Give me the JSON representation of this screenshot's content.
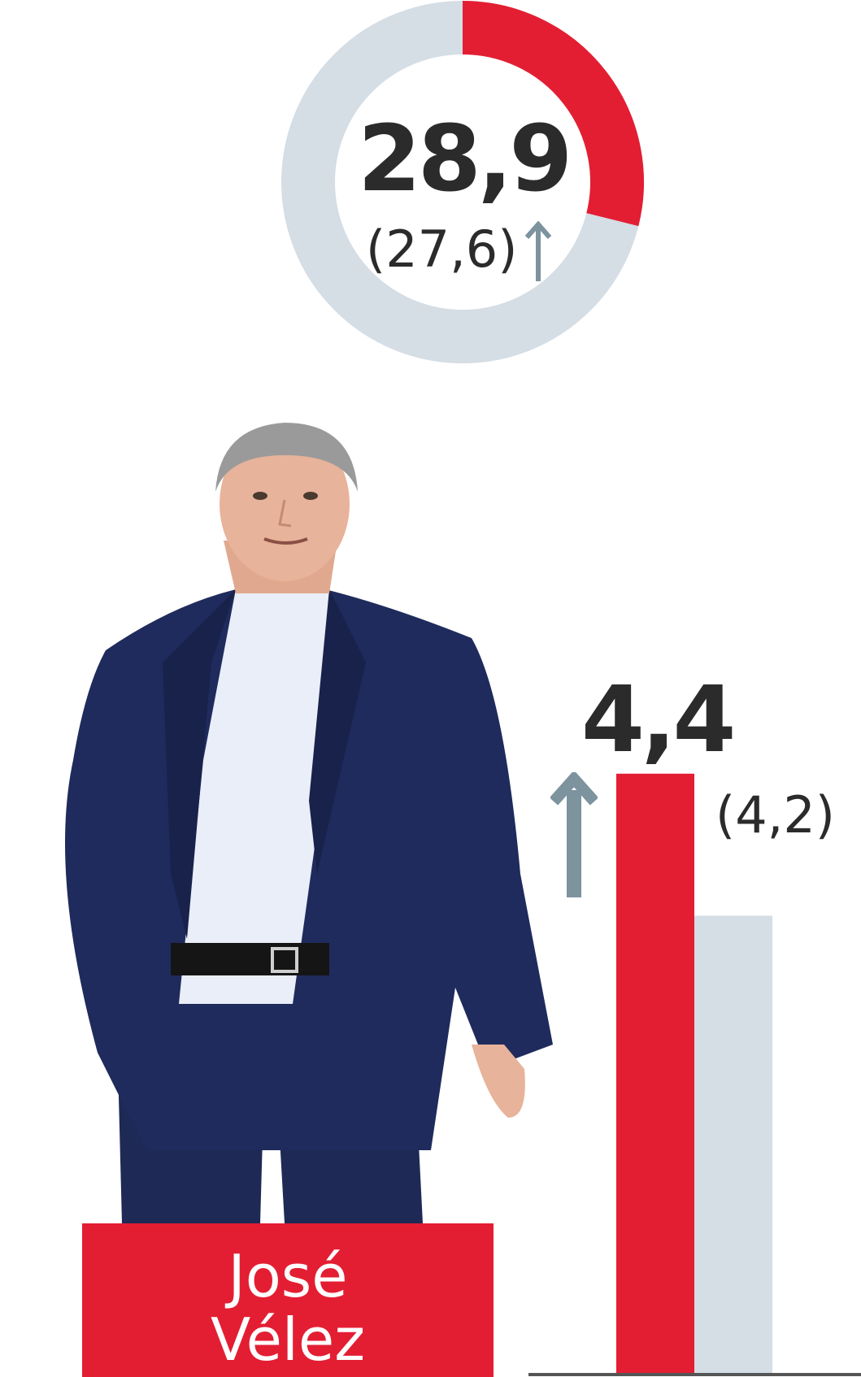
{
  "colors": {
    "accent": "#e31e33",
    "track": "#d5dde5",
    "arrow": "#7d939e",
    "text": "#2b2b2b"
  },
  "chart_data": [
    {
      "type": "pie",
      "value": 28.9,
      "value_label": "28,9",
      "previous_label": "(27,6)",
      "trend": "up"
    },
    {
      "type": "bar",
      "series": [
        {
          "values": [
            4.4
          ],
          "color": "#e31e33"
        },
        {
          "values": [
            4.2
          ],
          "color": "#d5dde5"
        }
      ],
      "value_label": "4,4",
      "previous_label": "(4,2)",
      "trend": "up"
    }
  ],
  "candidate": {
    "first_name": "José",
    "last_name": "Vélez"
  },
  "icons": [
    "arrow-up-icon"
  ]
}
